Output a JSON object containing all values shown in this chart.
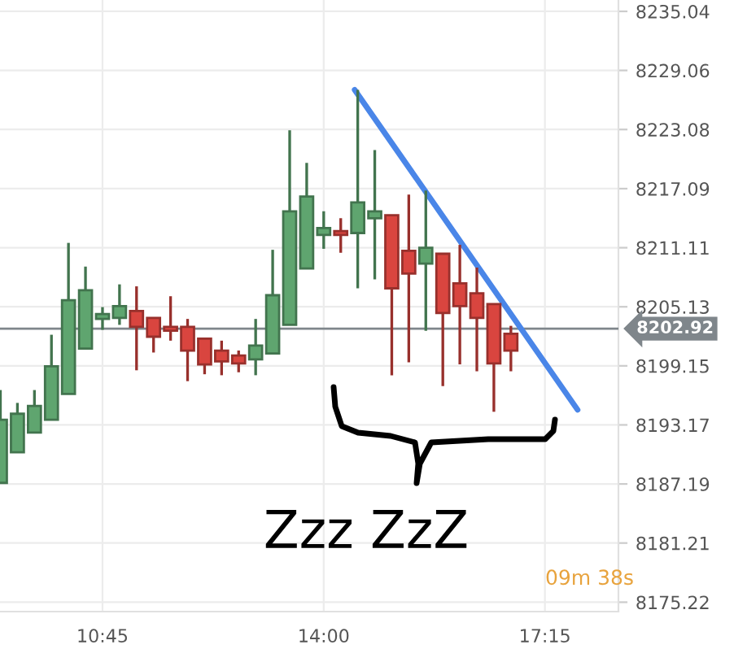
{
  "chart_data": {
    "type": "candlestick",
    "x": [
      9.25,
      9.5,
      9.75,
      10.0,
      10.25,
      10.5,
      10.75,
      11.0,
      11.25,
      11.5,
      11.75,
      12.0,
      12.25,
      12.5,
      12.75,
      13.0,
      13.25,
      13.5,
      13.75,
      14.0,
      14.25,
      14.5,
      14.75,
      15.0,
      15.25,
      15.5,
      15.75,
      16.0,
      16.25,
      16.5,
      16.75
    ],
    "ohlc": [
      [
        8187.3,
        8196.7,
        8187.3,
        8193.7
      ],
      [
        8190.4,
        8195.4,
        8190.4,
        8194.3
      ],
      [
        8192.4,
        8196.7,
        8192.4,
        8195.1
      ],
      [
        8193.7,
        8202.3,
        8193.7,
        8199.1
      ],
      [
        8196.3,
        8211.6,
        8196.3,
        8205.8
      ],
      [
        8200.9,
        8209.2,
        8200.9,
        8206.8
      ],
      [
        8203.9,
        8205.1,
        8202.8,
        8204.4
      ],
      [
        8204.0,
        8207.4,
        8203.3,
        8205.2
      ],
      [
        8204.7,
        8207.2,
        8198.7,
        8203.1
      ],
      [
        8204.0,
        8204.0,
        8200.5,
        8202.1
      ],
      [
        8203.1,
        8206.2,
        8201.7,
        8202.7
      ],
      [
        8203.1,
        8203.9,
        8197.6,
        8200.7
      ],
      [
        8201.9,
        8201.9,
        8198.3,
        8199.3
      ],
      [
        8200.7,
        8201.7,
        8198.2,
        8199.6
      ],
      [
        8200.2,
        8200.7,
        8198.5,
        8199.4
      ],
      [
        8199.8,
        8203.9,
        8198.2,
        8201.2
      ],
      [
        8200.4,
        8210.9,
        8200.4,
        8206.3
      ],
      [
        8203.3,
        8223.0,
        8203.3,
        8214.8
      ],
      [
        8209.0,
        8219.7,
        8209.0,
        8216.3
      ],
      [
        8212.4,
        8214.8,
        8211.0,
        8213.1
      ],
      [
        8212.8,
        8214.1,
        8210.6,
        8212.4
      ],
      [
        8212.6,
        8227.1,
        8207.0,
        8215.7
      ],
      [
        8214.1,
        8221.0,
        8207.9,
        8214.8
      ],
      [
        8214.4,
        8214.4,
        8198.2,
        8207.0
      ],
      [
        8210.8,
        8216.5,
        8199.5,
        8208.5
      ],
      [
        8209.5,
        8216.9,
        8202.7,
        8211.1
      ],
      [
        8210.5,
        8210.5,
        8197.1,
        8204.5
      ],
      [
        8207.5,
        8211.4,
        8199.3,
        8205.2
      ],
      [
        8206.5,
        8209.1,
        8198.6,
        8204.0
      ],
      [
        8205.4,
        8205.4,
        8194.5,
        8199.4
      ],
      [
        8202.4,
        8203.2,
        8198.6,
        8200.7
      ]
    ],
    "colors": [
      "#5fa56f",
      "#5fa56f",
      "#5fa56f",
      "#5fa56f",
      "#5fa56f",
      "#5fa56f",
      "#5fa56f",
      "#5fa56f",
      "#d9453f",
      "#d9453f",
      "#d9453f",
      "#d9453f",
      "#d9453f",
      "#d9453f",
      "#d9453f",
      "#5fa56f",
      "#5fa56f",
      "#5fa56f",
      "#5fa56f",
      "#5fa56f",
      "#d9453f",
      "#5fa56f",
      "#5fa56f",
      "#d9453f",
      "#d9453f",
      "#5fa56f",
      "#d9453f",
      "#d9453f",
      "#d9453f",
      "#d9453f",
      "#d9453f"
    ],
    "series": [
      {
        "type": "line",
        "x": [
          14.455,
          17.73
        ],
        "values": [
          8227.1,
          8194.7
        ],
        "color": "#4a86e8"
      }
    ],
    "xlim": [
      9.244,
      18.33
    ],
    "xticks": [
      {
        "value": 10.75,
        "label": "10:45"
      },
      {
        "value": 14.0,
        "label": "14:00"
      },
      {
        "value": 17.25,
        "label": "17:15"
      }
    ],
    "ylim": [
      8174.27,
      8236.19
    ],
    "yticks": [
      8175.22,
      8181.21,
      8187.19,
      8193.17,
      8199.15,
      8205.13,
      8211.11,
      8217.09,
      8223.08,
      8229.06,
      8235.04
    ],
    "ref_lines": [
      {
        "axis": "y",
        "value": 8202.92,
        "label": "8202.92",
        "color": "#7f868b"
      }
    ],
    "annotations": [
      "Zzz ZzZ",
      "09m 38s"
    ],
    "grid": true
  }
}
